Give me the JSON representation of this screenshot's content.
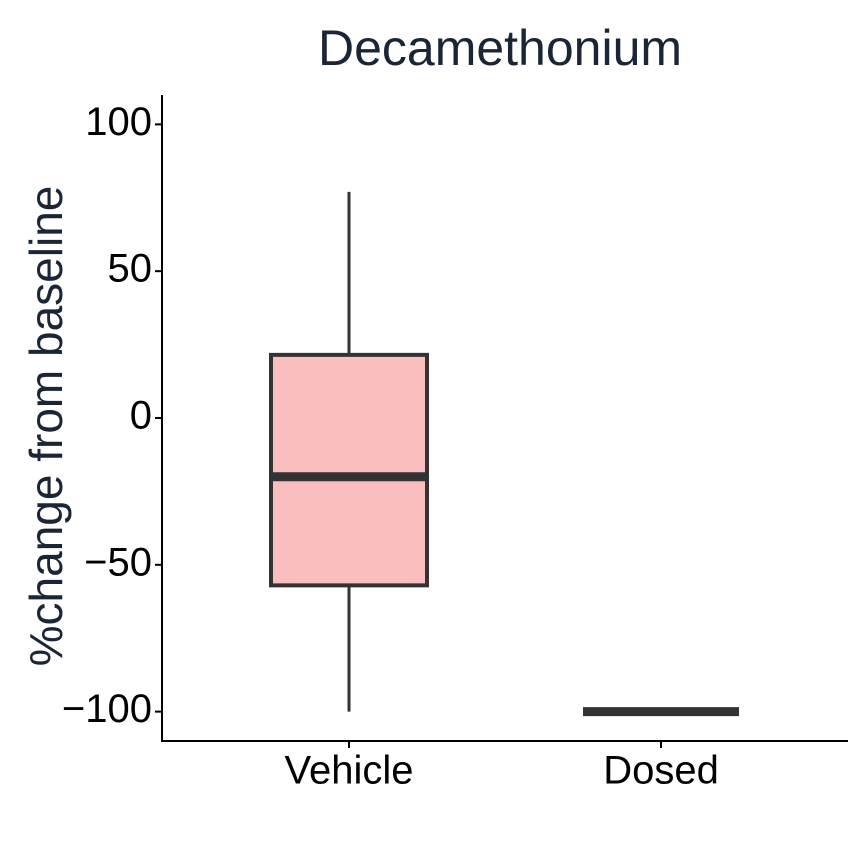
{
  "chart_data": {
    "type": "box",
    "title": "Decamethonium",
    "y_label": "%change from baseline",
    "categories": [
      "Vehicle",
      "Dosed"
    ],
    "min": [
      -100,
      -100
    ],
    "q1": [
      -57,
      -100
    ],
    "median": [
      -20,
      -100
    ],
    "q3": [
      21.5,
      -100
    ],
    "max": [
      77,
      -100
    ],
    "color": "#fbbebe",
    "line_color": "#333333",
    "ylim": [
      -110,
      110
    ],
    "yticks": [
      {
        "value": -100,
        "label": "−100"
      },
      {
        "value": -50,
        "label": "−50"
      },
      0,
      50,
      100
    ]
  }
}
